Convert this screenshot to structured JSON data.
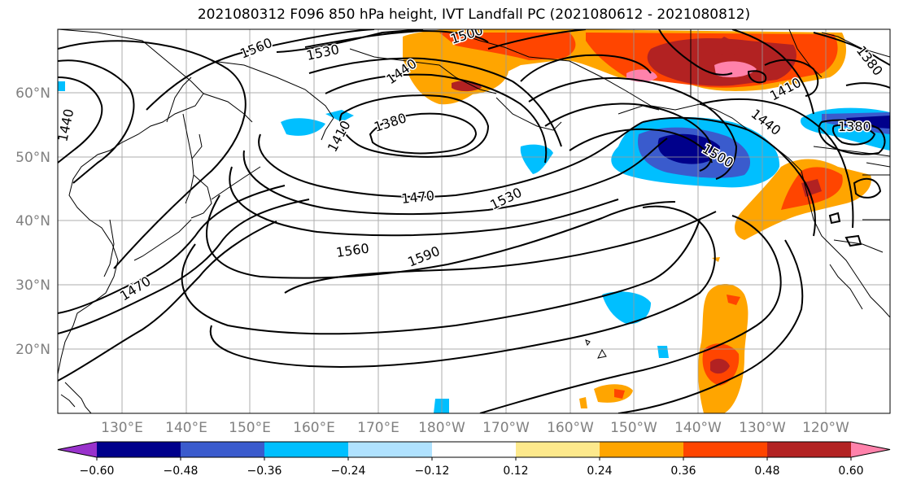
{
  "title": "2021080312 F096 850 hPa height, IVT Landfall PC (2021080612 - 2021080812)",
  "lat_labels": [
    "60°N",
    "50°N",
    "40°N",
    "30°N",
    "20°N"
  ],
  "lon_labels": [
    "130°E",
    "140°E",
    "150°E",
    "160°E",
    "170°E",
    "180°W",
    "170°W",
    "160°W",
    "150°W",
    "140°W",
    "130°W",
    "120°W"
  ],
  "contour_labels": [
    "1560",
    "1530",
    "1500",
    "1440",
    "1410",
    "1380",
    "1470",
    "1530",
    "1560",
    "1590",
    "1470",
    "1440",
    "1500",
    "1440",
    "1410",
    "1380",
    "1380"
  ],
  "colorbar": {
    "ticks": [
      "−0.60",
      "−0.48",
      "−0.36",
      "−0.24",
      "−0.12",
      "0.12",
      "0.24",
      "0.36",
      "0.48",
      "0.60"
    ],
    "colors": [
      "#9932cc",
      "#00008b",
      "#3a5bcd",
      "#00bfff",
      "#b0e2ff",
      "#ffffff",
      "#fde98c",
      "#ffa500",
      "#ff4500",
      "#b22222",
      "#ff82ab"
    ]
  }
}
